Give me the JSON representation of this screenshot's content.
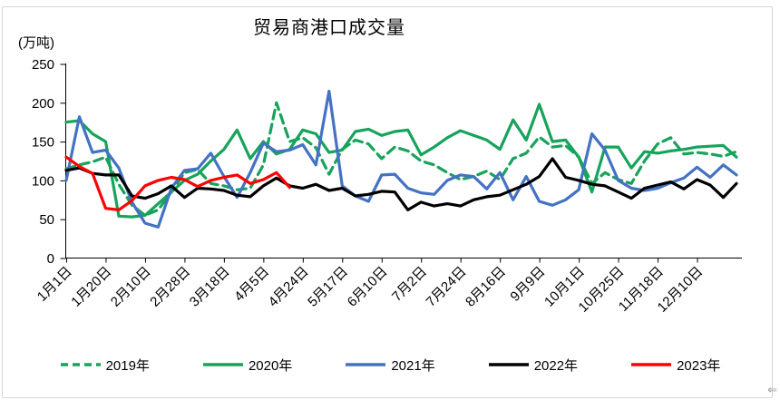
{
  "window": {
    "border_color": "#d6d6d6",
    "resize_arrow_glyph": "⇐"
  },
  "chart_data": {
    "type": "line",
    "title": "贸易商港口成交量",
    "unit_label": "(万吨)",
    "xlabel": "",
    "ylabel": "万吨",
    "ylim": [
      0,
      250
    ],
    "yticks": [
      0,
      50,
      100,
      150,
      200,
      250
    ],
    "grid": false,
    "legend_position": "bottom",
    "n_points": 52,
    "points_per_label": 3,
    "x_labels": [
      "1月1日",
      "1月20日",
      "2月10日",
      "2月28日",
      "3月18日",
      "4月5日",
      "4月24日",
      "5月17日",
      "6月10日",
      "7月2日",
      "7月24日",
      "8月16日",
      "9月9日",
      "10月1日",
      "10月25日",
      "11月18日",
      "12月10日"
    ],
    "series": [
      {
        "name": "2019年",
        "color": "#17A35B",
        "dash": "10 6",
        "values": [
          115,
          120,
          124,
          130,
          95,
          68,
          55,
          62,
          85,
          110,
          114,
          96,
          93,
          88,
          90,
          120,
          200,
          150,
          155,
          142,
          108,
          140,
          152,
          147,
          128,
          143,
          138,
          125,
          120,
          110,
          101,
          105,
          112,
          101,
          128,
          135,
          156,
          143,
          145,
          130,
          96,
          110,
          101,
          96,
          125,
          147,
          155,
          134,
          136,
          134,
          131,
          137
        ]
      },
      {
        "name": "2020年",
        "color": "#17A35B",
        "dash": null,
        "values": [
          175,
          177,
          160,
          150,
          54,
          53,
          55,
          70,
          85,
          100,
          108,
          125,
          140,
          165,
          128,
          150,
          134,
          140,
          165,
          160,
          136,
          139,
          163,
          166,
          158,
          163,
          165,
          133,
          143,
          155,
          164,
          158,
          152,
          140,
          178,
          152,
          198,
          150,
          152,
          130,
          85,
          143,
          143,
          116,
          137,
          135,
          138,
          140,
          143,
          144,
          145,
          130
        ]
      },
      {
        "name": "2021年",
        "color": "#4472C4",
        "dash": null,
        "values": [
          100,
          182,
          136,
          139,
          116,
          72,
          45,
          40,
          90,
          113,
          115,
          135,
          105,
          78,
          110,
          148,
          137,
          139,
          146,
          120,
          215,
          93,
          80,
          73,
          107,
          108,
          90,
          84,
          82,
          100,
          107,
          105,
          89,
          110,
          75,
          105,
          73,
          68,
          75,
          88,
          160,
          139,
          100,
          90,
          87,
          90,
          97,
          103,
          117,
          104,
          120,
          107
        ]
      },
      {
        "name": "2022年",
        "color": "#000000",
        "dash": null,
        "values": [
          113,
          116,
          109,
          107,
          107,
          80,
          77,
          83,
          93,
          78,
          90,
          89,
          87,
          81,
          79,
          93,
          103,
          93,
          90,
          95,
          87,
          90,
          80,
          82,
          86,
          85,
          62,
          72,
          67,
          70,
          67,
          75,
          79,
          81,
          88,
          95,
          105,
          128,
          104,
          100,
          95,
          93,
          85,
          77,
          90,
          94,
          98,
          89,
          101,
          94,
          78,
          96
        ]
      },
      {
        "name": "2023年",
        "color": "#FF0000",
        "dash": null,
        "values": [
          130,
          118,
          109,
          64,
          62,
          74,
          93,
          100,
          104,
          101,
          92,
          100,
          104,
          107,
          96,
          101,
          110,
          91
        ]
      }
    ]
  }
}
